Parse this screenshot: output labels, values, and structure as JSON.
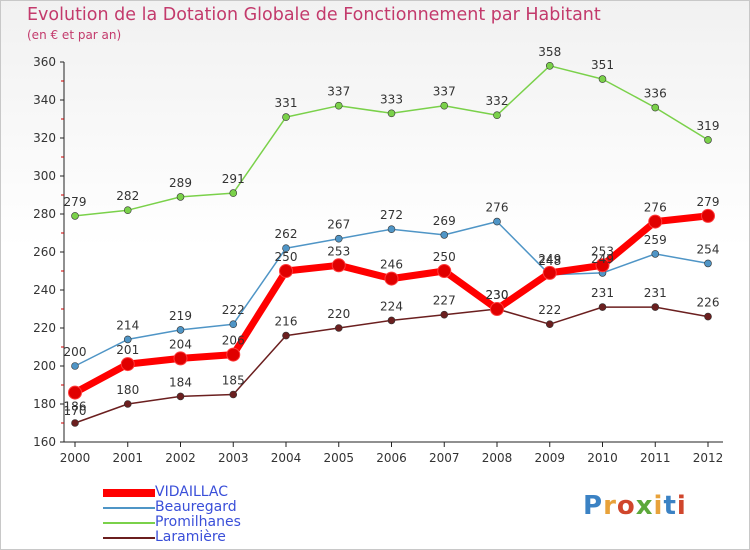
{
  "title": "Evolution de la Dotation Globale de Fonctionnement par Habitant",
  "subtitle": "(en € et par an)",
  "logo": "Proxiti",
  "chart_data": {
    "type": "line",
    "x": [
      "2000",
      "2001",
      "2002",
      "2003",
      "2004",
      "2005",
      "2006",
      "2007",
      "2008",
      "2009",
      "2010",
      "2011",
      "2012"
    ],
    "ylim": [
      160,
      360
    ],
    "yticks": [
      160,
      180,
      200,
      220,
      240,
      260,
      280,
      300,
      320,
      340,
      360
    ],
    "grid": false,
    "legend_position": "bottom-left",
    "series": [
      {
        "name": "Promilhanes",
        "color": "#7ad14a",
        "values": [
          279,
          282,
          289,
          291,
          331,
          337,
          333,
          337,
          332,
          358,
          351,
          336,
          319
        ]
      },
      {
        "name": "Beauregard",
        "color": "#4f95c6",
        "values": [
          200,
          214,
          219,
          222,
          262,
          267,
          272,
          269,
          276,
          248,
          249,
          259,
          254
        ]
      },
      {
        "name": "Laramière",
        "color": "#6b1f1f",
        "values": [
          170,
          180,
          184,
          185,
          216,
          220,
          224,
          227,
          230,
          222,
          231,
          231,
          226
        ]
      },
      {
        "name": "VIDAILLAC",
        "color": "#ff0000",
        "values": [
          186,
          201,
          204,
          206,
          250,
          253,
          246,
          250,
          230,
          249,
          253,
          276,
          279
        ]
      }
    ],
    "legend_order": [
      "VIDAILLAC",
      "Beauregard",
      "Promilhanes",
      "Laramière"
    ]
  }
}
